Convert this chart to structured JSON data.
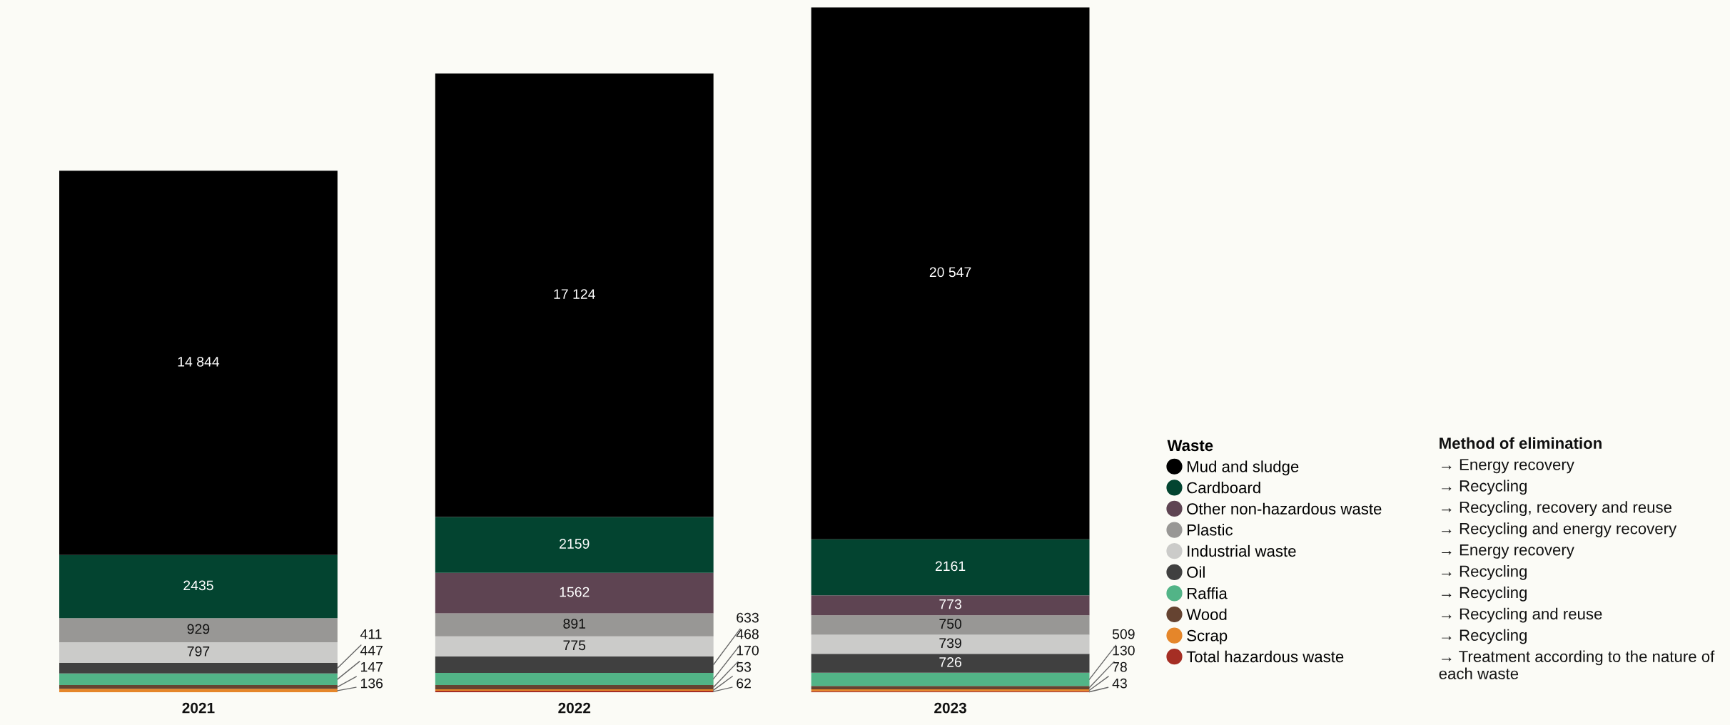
{
  "chart_data": {
    "type": "bar",
    "stacked": true,
    "categories": [
      "2021",
      "2022",
      "2023"
    ],
    "series": [
      {
        "name": "Total hazardous waste",
        "color": "#a52e24",
        "values": [
          null,
          62,
          43
        ],
        "value_labels": [
          null,
          "62",
          "43"
        ]
      },
      {
        "name": "Scrap",
        "color": "#e5862a",
        "values": [
          136,
          53,
          78
        ],
        "value_labels": [
          "136",
          "53",
          "78"
        ]
      },
      {
        "name": "Wood",
        "color": "#654331",
        "values": [
          147,
          170,
          130
        ],
        "value_labels": [
          "147",
          "170",
          "130"
        ]
      },
      {
        "name": "Raffia",
        "color": "#52b487",
        "values": [
          447,
          468,
          509
        ],
        "value_labels": [
          "447",
          "468",
          "509"
        ]
      },
      {
        "name": "Oil",
        "color": "#404040",
        "values": [
          411,
          633,
          726
        ],
        "value_labels": [
          "411",
          "633",
          "726"
        ]
      },
      {
        "name": "Industrial waste",
        "color": "#cbcbc9",
        "values": [
          797,
          775,
          739
        ],
        "value_labels": [
          "797",
          "775",
          "739"
        ]
      },
      {
        "name": "Plastic",
        "color": "#989795",
        "values": [
          929,
          891,
          750
        ],
        "value_labels": [
          "929",
          "891",
          "750"
        ]
      },
      {
        "name": "Other non-hazardous waste",
        "color": "#5e4452",
        "values": [
          null,
          1562,
          773
        ],
        "value_labels": [
          null,
          "1562",
          "773"
        ]
      },
      {
        "name": "Cardboard",
        "color": "#034430",
        "values": [
          2435,
          2159,
          2161
        ],
        "value_labels": [
          "2435",
          "2159",
          "2161"
        ]
      },
      {
        "name": "Mud and sludge",
        "color": "#000000",
        "values": [
          14844,
          17124,
          20547
        ],
        "value_labels": [
          "14 844",
          "17 124",
          "20 547"
        ]
      }
    ],
    "legend": "bottom right",
    "legend_title": "Waste",
    "annotations": [
      "Method of elimination",
      "→ Energy recovery",
      "→ Recycling",
      "→ Recycling, recovery and reuse",
      "→ Recycling and energy recovery",
      "→ Energy recovery",
      "→ Recycling",
      "→ Recycling",
      "→ Recycling and reuse",
      "→ Recycling",
      "→ Treatment according to the nature of each waste"
    ]
  }
}
